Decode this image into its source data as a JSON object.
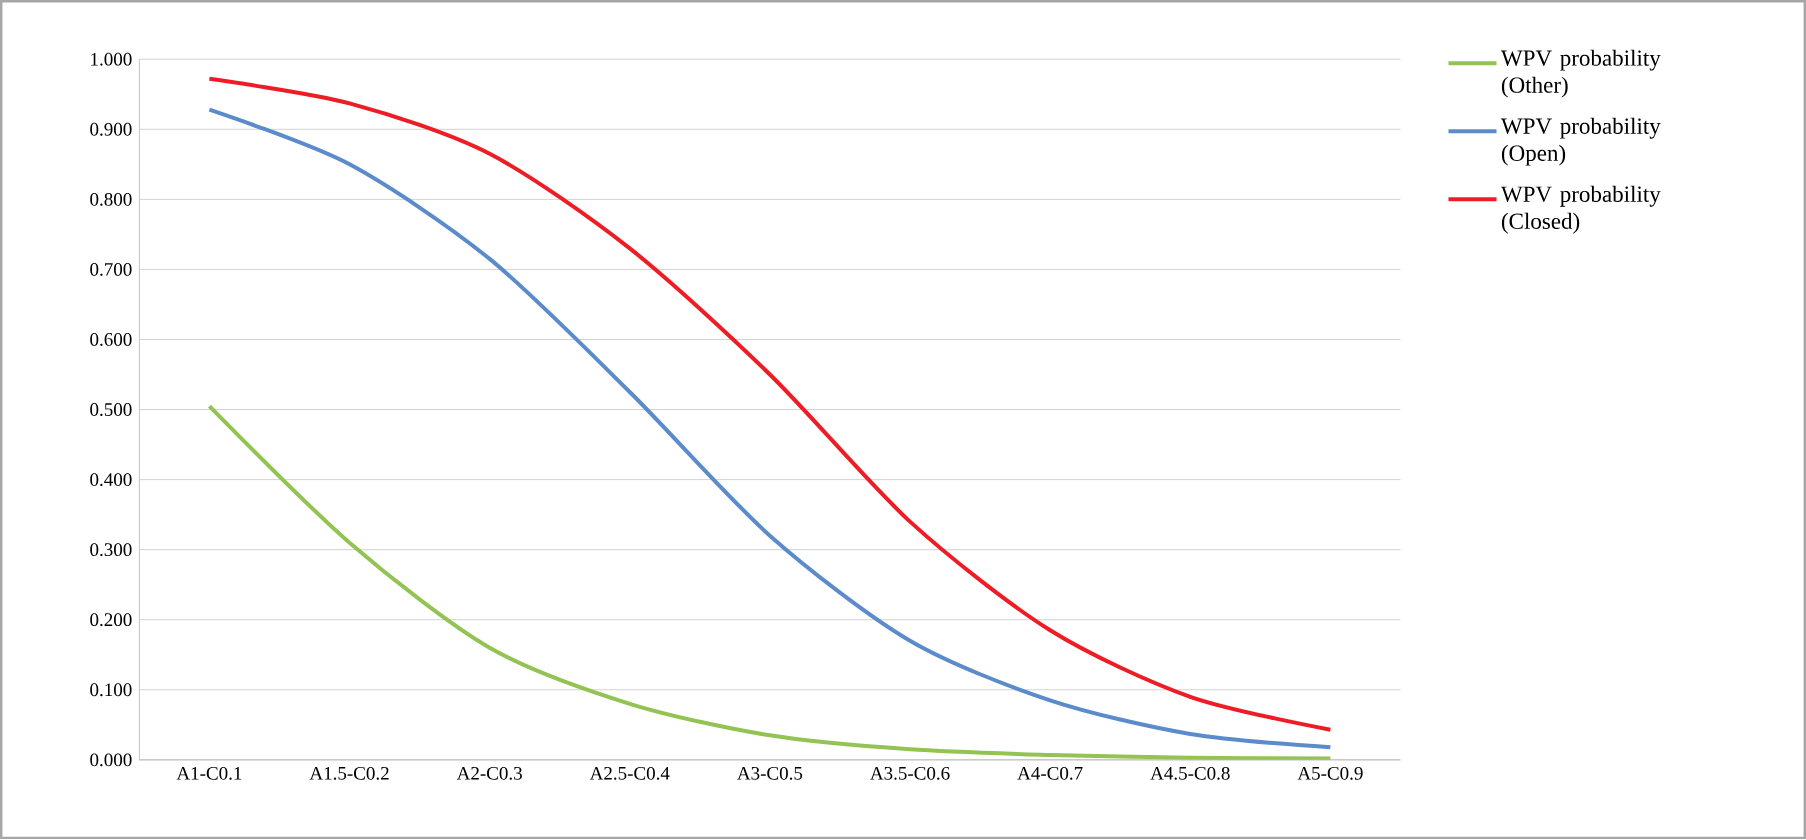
{
  "chart_data": {
    "type": "line",
    "categories": [
      "A1-C0.1",
      "A1.5-C0.2",
      "A2-C0.3",
      "A2.5-C0.4",
      "A3-C0.5",
      "A3.5-C0.6",
      "A4-C0.7",
      "A4.5-C0.8",
      "A5-C0.9"
    ],
    "series": [
      {
        "name": "WPV probability (Other)",
        "color": "#92c353",
        "values": [
          0.505,
          0.31,
          0.16,
          0.08,
          0.035,
          0.015,
          0.007,
          0.003,
          0.002
        ]
      },
      {
        "name": "WPV probability (Open)",
        "color": "#5b8bcb",
        "values": [
          0.928,
          0.85,
          0.715,
          0.525,
          0.32,
          0.17,
          0.085,
          0.037,
          0.018
        ]
      },
      {
        "name": "WPV probability (Closed)",
        "color": "#ee1c25",
        "values": [
          0.972,
          0.937,
          0.865,
          0.73,
          0.55,
          0.34,
          0.185,
          0.09,
          0.043
        ]
      }
    ],
    "ylim": [
      0,
      1
    ],
    "yticks": [
      {
        "value": 0,
        "label": "0.000"
      },
      {
        "value": 0.1,
        "label": "0.100"
      },
      {
        "value": 0.2,
        "label": "0.200"
      },
      {
        "value": 0.3,
        "label": "0.300"
      },
      {
        "value": 0.4,
        "label": "0.400"
      },
      {
        "value": 0.5,
        "label": "0.500"
      },
      {
        "value": 0.6,
        "label": "0.600"
      },
      {
        "value": 0.7,
        "label": "0.700"
      },
      {
        "value": 0.8,
        "label": "0.800"
      },
      {
        "value": 0.9,
        "label": "0.900"
      },
      {
        "value": 1,
        "label": "1.000"
      }
    ],
    "grid": "y",
    "legend": "right",
    "marker": "none",
    "line_style": "solid"
  }
}
